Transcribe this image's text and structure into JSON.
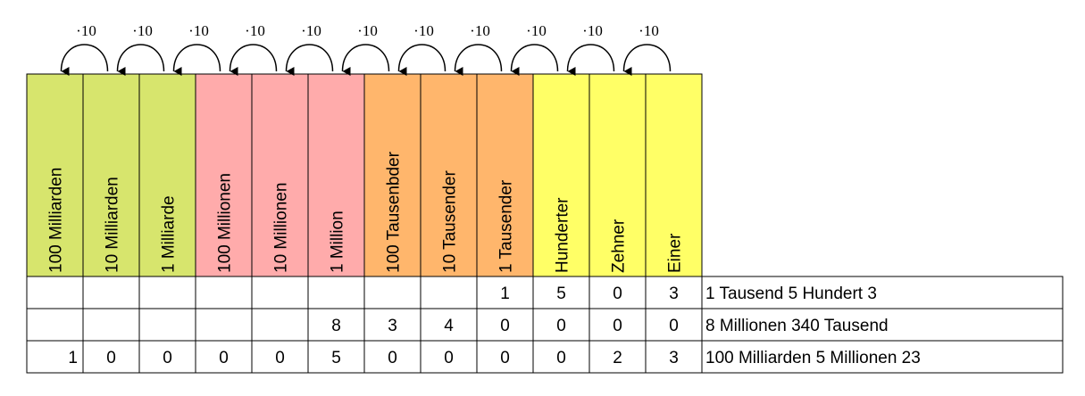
{
  "table": {
    "multipliers": [
      "·10",
      "·10",
      "·10",
      "·10",
      "·10",
      "·10",
      "·10",
      "·10",
      "·10",
      "·10",
      "·10"
    ],
    "headers": [
      "100 Milliarden",
      "10 Milliarden",
      "1 Milliarde",
      "100 Millionen",
      "10 Millionen",
      "1 Million",
      "100 Tausenbder",
      "10 Tausender",
      "1 Tausender",
      "Hunderter",
      "Zehner",
      "Einer"
    ],
    "rows": [
      {
        "cells": [
          null,
          null,
          null,
          null,
          null,
          null,
          null,
          null,
          1,
          5,
          0,
          3
        ],
        "text": "1 Tausend 5 Hundert 3"
      },
      {
        "cells": [
          null,
          null,
          null,
          null,
          null,
          8,
          3,
          4,
          0,
          0,
          0,
          0
        ],
        "text": "8 Millionen 340 Tausend"
      },
      {
        "cells": [
          1,
          0,
          0,
          0,
          0,
          5,
          0,
          0,
          0,
          0,
          2,
          3
        ],
        "text": "100 Milliarden 5 Millionen 23"
      }
    ]
  }
}
